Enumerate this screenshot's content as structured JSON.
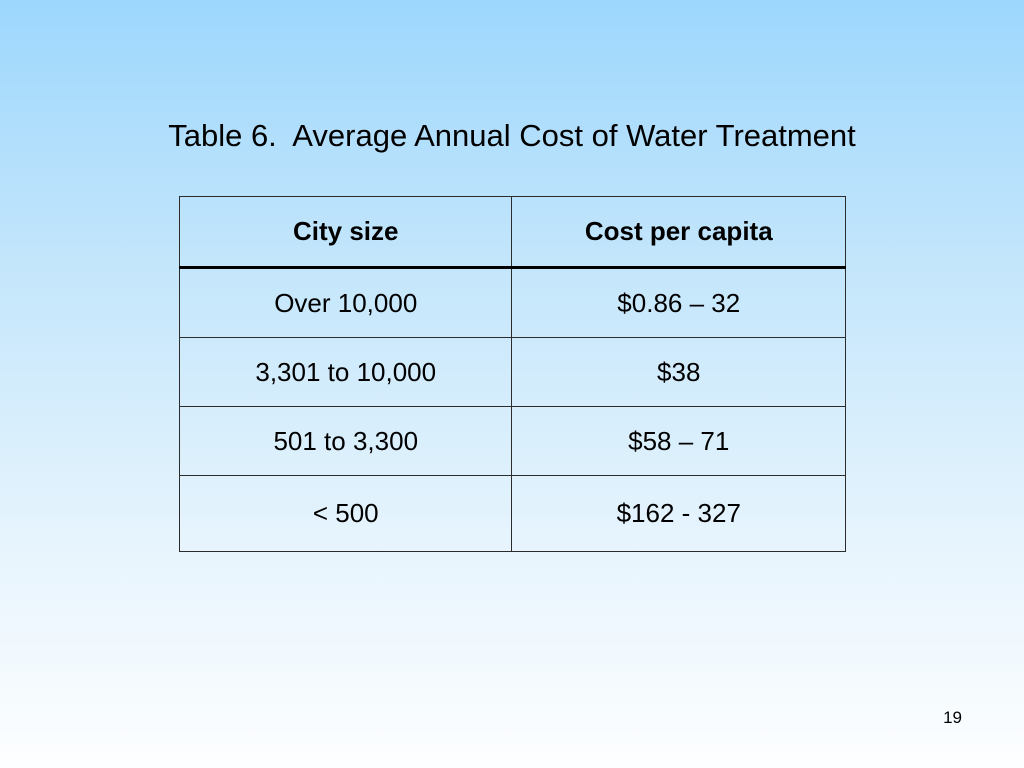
{
  "slide": {
    "title": "Table 6.  Average Annual Cost of Water Treatment",
    "page_number": "19"
  },
  "table": {
    "headers": [
      "City size",
      "Cost per capita"
    ],
    "rows": [
      [
        "Over 10,000",
        "$0.86 – 32"
      ],
      [
        "3,301 to 10,000",
        "$38"
      ],
      [
        "501 to 3,300",
        "$58 – 71"
      ],
      [
        "< 500",
        "$162 - 327"
      ]
    ]
  }
}
